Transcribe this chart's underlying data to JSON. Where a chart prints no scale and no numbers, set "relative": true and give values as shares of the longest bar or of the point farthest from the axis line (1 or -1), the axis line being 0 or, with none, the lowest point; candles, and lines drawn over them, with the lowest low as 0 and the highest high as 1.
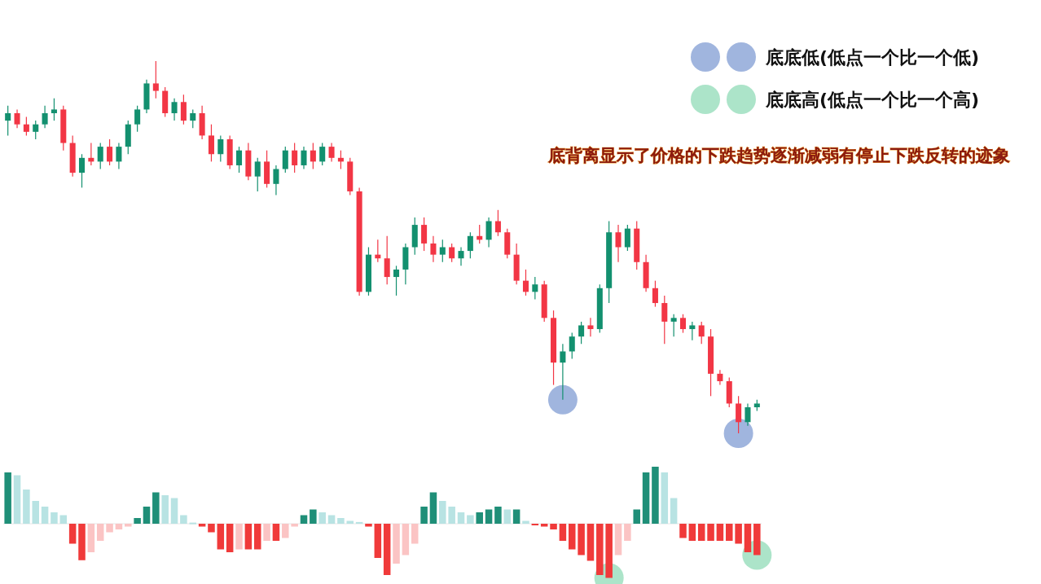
{
  "chart_data": [
    {
      "type": "candlestick",
      "relative": true,
      "categories": [
        null,
        null,
        null,
        null,
        null,
        null,
        null,
        null,
        null,
        null,
        null,
        null,
        null,
        null,
        null,
        null,
        null,
        null,
        null,
        null,
        null,
        null,
        null,
        null,
        null,
        null,
        null,
        null,
        null,
        null,
        null,
        null,
        null,
        null,
        null,
        null,
        null,
        null,
        null,
        null,
        null,
        null,
        null,
        null,
        null,
        null,
        null,
        null,
        null,
        null,
        null,
        null,
        null,
        null,
        null,
        null,
        null,
        null,
        null,
        null,
        null,
        null,
        null,
        null,
        null,
        null,
        null,
        null,
        null,
        null,
        null,
        null,
        null,
        null,
        null,
        null,
        null,
        null,
        null,
        null,
        null,
        null
      ],
      "annotations": [
        "底背离显示了价格的下跌趋势逐渐减弱有停止下跌反转的迹象"
      ],
      "legend": "top right",
      "series": [
        {
          "ohlc": [
            [
              0.84,
              0.88,
              0.8,
              0.86
            ],
            [
              0.86,
              0.87,
              0.82,
              0.83
            ],
            [
              0.83,
              0.85,
              0.8,
              0.81
            ],
            [
              0.81,
              0.84,
              0.79,
              0.83
            ],
            [
              0.83,
              0.88,
              0.82,
              0.86
            ],
            [
              0.86,
              0.9,
              0.84,
              0.87
            ],
            [
              0.87,
              0.88,
              0.76,
              0.78
            ],
            [
              0.78,
              0.8,
              0.69,
              0.7
            ],
            [
              0.7,
              0.75,
              0.66,
              0.74
            ],
            [
              0.74,
              0.78,
              0.72,
              0.73
            ],
            [
              0.73,
              0.78,
              0.71,
              0.77
            ],
            [
              0.77,
              0.79,
              0.72,
              0.73
            ],
            [
              0.73,
              0.78,
              0.71,
              0.77
            ],
            [
              0.77,
              0.84,
              0.75,
              0.83
            ],
            [
              0.83,
              0.88,
              0.81,
              0.87
            ],
            [
              0.87,
              0.95,
              0.86,
              0.94
            ],
            [
              0.94,
              1.0,
              0.9,
              0.92
            ],
            [
              0.92,
              0.93,
              0.85,
              0.86
            ],
            [
              0.86,
              0.9,
              0.84,
              0.89
            ],
            [
              0.89,
              0.91,
              0.83,
              0.84
            ],
            [
              0.84,
              0.87,
              0.82,
              0.86
            ],
            [
              0.86,
              0.88,
              0.79,
              0.8
            ],
            [
              0.8,
              0.83,
              0.73,
              0.75
            ],
            [
              0.75,
              0.8,
              0.73,
              0.79
            ],
            [
              0.79,
              0.8,
              0.71,
              0.72
            ],
            [
              0.72,
              0.77,
              0.7,
              0.76
            ],
            [
              0.76,
              0.78,
              0.68,
              0.69
            ],
            [
              0.69,
              0.74,
              0.65,
              0.73
            ],
            [
              0.73,
              0.76,
              0.66,
              0.67
            ],
            [
              0.67,
              0.72,
              0.64,
              0.71
            ],
            [
              0.71,
              0.77,
              0.7,
              0.76
            ],
            [
              0.76,
              0.78,
              0.7,
              0.72
            ],
            [
              0.72,
              0.77,
              0.71,
              0.76
            ],
            [
              0.76,
              0.78,
              0.71,
              0.73
            ],
            [
              0.73,
              0.78,
              0.72,
              0.77
            ],
            [
              0.77,
              0.78,
              0.73,
              0.74
            ],
            [
              0.74,
              0.76,
              0.71,
              0.73
            ],
            [
              0.73,
              0.74,
              0.64,
              0.65
            ],
            [
              0.65,
              0.66,
              0.37,
              0.38
            ],
            [
              0.38,
              0.5,
              0.37,
              0.48
            ],
            [
              0.48,
              0.52,
              0.46,
              0.47
            ],
            [
              0.47,
              0.53,
              0.4,
              0.42
            ],
            [
              0.42,
              0.45,
              0.37,
              0.44
            ],
            [
              0.44,
              0.51,
              0.4,
              0.5
            ],
            [
              0.5,
              0.58,
              0.48,
              0.56
            ],
            [
              0.56,
              0.58,
              0.49,
              0.51
            ],
            [
              0.51,
              0.53,
              0.46,
              0.48
            ],
            [
              0.48,
              0.52,
              0.46,
              0.5
            ],
            [
              0.5,
              0.51,
              0.46,
              0.47
            ],
            [
              0.47,
              0.5,
              0.45,
              0.49
            ],
            [
              0.49,
              0.54,
              0.47,
              0.53
            ],
            [
              0.53,
              0.56,
              0.51,
              0.52
            ],
            [
              0.52,
              0.58,
              0.5,
              0.57
            ],
            [
              0.57,
              0.6,
              0.53,
              0.54
            ],
            [
              0.54,
              0.55,
              0.47,
              0.48
            ],
            [
              0.48,
              0.51,
              0.4,
              0.41
            ],
            [
              0.41,
              0.44,
              0.37,
              0.38
            ],
            [
              0.38,
              0.42,
              0.36,
              0.4
            ],
            [
              0.4,
              0.41,
              0.3,
              0.31
            ],
            [
              0.31,
              0.33,
              0.13,
              0.19
            ],
            [
              0.19,
              0.24,
              0.09,
              0.22
            ],
            [
              0.22,
              0.27,
              0.2,
              0.26
            ],
            [
              0.26,
              0.3,
              0.24,
              0.29
            ],
            [
              0.29,
              0.31,
              0.26,
              0.28
            ],
            [
              0.28,
              0.4,
              0.27,
              0.39
            ],
            [
              0.39,
              0.57,
              0.35,
              0.54
            ],
            [
              0.54,
              0.56,
              0.46,
              0.5
            ],
            [
              0.5,
              0.56,
              0.49,
              0.55
            ],
            [
              0.55,
              0.57,
              0.44,
              0.46
            ],
            [
              0.46,
              0.48,
              0.38,
              0.39
            ],
            [
              0.39,
              0.41,
              0.34,
              0.35
            ],
            [
              0.35,
              0.37,
              0.24,
              0.3
            ],
            [
              0.3,
              0.32,
              0.26,
              0.31
            ],
            [
              0.31,
              0.32,
              0.27,
              0.28
            ],
            [
              0.28,
              0.3,
              0.25,
              0.29
            ],
            [
              0.29,
              0.3,
              0.24,
              0.26
            ],
            [
              0.26,
              0.28,
              0.1,
              0.16
            ],
            [
              0.16,
              0.17,
              0.13,
              0.14
            ],
            [
              0.14,
              0.15,
              0.07,
              0.08
            ],
            [
              0.08,
              0.1,
              0.0,
              0.03
            ],
            [
              0.03,
              0.08,
              0.02,
              0.07
            ],
            [
              0.07,
              0.09,
              0.06,
              0.08
            ]
          ]
        },
        {
          "type": "scatter",
          "name": "底底低(低点一个比一个低)",
          "color": "#8fa8d8",
          "marker": "circle",
          "values": [
            null,
            null,
            null,
            null,
            null,
            null,
            null,
            null,
            null,
            null,
            null,
            null,
            null,
            null,
            null,
            null,
            null,
            null,
            null,
            null,
            null,
            null,
            null,
            null,
            null,
            null,
            null,
            null,
            null,
            null,
            null,
            null,
            null,
            null,
            null,
            null,
            null,
            null,
            null,
            null,
            null,
            null,
            null,
            null,
            null,
            null,
            null,
            null,
            null,
            null,
            null,
            null,
            null,
            null,
            null,
            null,
            null,
            null,
            null,
            null,
            0.09,
            null,
            null,
            null,
            null,
            null,
            null,
            null,
            null,
            null,
            null,
            null,
            null,
            null,
            null,
            null,
            null,
            null,
            null,
            0.0,
            null,
            null
          ]
        }
      ]
    },
    {
      "type": "bar",
      "relative": true,
      "categories": [
        null,
        null,
        null,
        null,
        null,
        null,
        null,
        null,
        null,
        null,
        null,
        null,
        null,
        null,
        null,
        null,
        null,
        null,
        null,
        null,
        null,
        null,
        null,
        null,
        null,
        null,
        null,
        null,
        null,
        null,
        null,
        null,
        null,
        null,
        null,
        null,
        null,
        null,
        null,
        null,
        null,
        null,
        null,
        null,
        null,
        null,
        null,
        null,
        null,
        null,
        null,
        null,
        null,
        null,
        null,
        null,
        null,
        null,
        null,
        null,
        null,
        null,
        null,
        null,
        null,
        null,
        null,
        null,
        null,
        null,
        null,
        null,
        null,
        null,
        null,
        null,
        null,
        null,
        null,
        null,
        null,
        null
      ],
      "legend": "top right",
      "series": [
        {
          "values": [
            0.9,
            0.85,
            0.6,
            0.4,
            0.3,
            0.2,
            0.15,
            -0.35,
            -0.64,
            -0.5,
            -0.3,
            -0.15,
            -0.1,
            -0.05,
            0.1,
            0.3,
            0.55,
            0.5,
            0.45,
            0.15,
            0.02,
            -0.05,
            -0.15,
            -0.45,
            -0.5,
            -0.45,
            -0.45,
            -0.45,
            -0.3,
            -0.3,
            -0.25,
            -0.05,
            0.15,
            0.25,
            0.2,
            0.15,
            0.1,
            0.05,
            0.03,
            -0.05,
            -0.6,
            -0.9,
            -0.7,
            -0.55,
            -0.35,
            0.3,
            0.55,
            0.4,
            0.3,
            0.2,
            0.15,
            0.2,
            0.25,
            0.3,
            0.25,
            0.25,
            0.05,
            -0.02,
            -0.05,
            -0.1,
            -0.3,
            -0.45,
            -0.55,
            -0.65,
            -0.9,
            -0.95,
            -0.55,
            -0.3,
            0.25,
            0.9,
            1.0,
            0.9,
            0.45,
            -0.25,
            -0.3,
            -0.3,
            -0.3,
            -0.3,
            -0.3,
            -0.35,
            -0.5,
            -0.55
          ],
          "colors": [
            "#1f8f78",
            "#b8e3e3",
            "#b8e3e3",
            "#b8e3e3",
            "#b8e3e3",
            "#b8e3e3",
            "#b8e3e3",
            "#f03a3a",
            "#f03a3a",
            "#fbc4c4",
            "#fbc4c4",
            "#fbc4c4",
            "#fbc4c4",
            "#fbc4c4",
            "#1f8f78",
            "#1f8f78",
            "#1f8f78",
            "#b8e3e3",
            "#b8e3e3",
            "#b8e3e3",
            "#b8e3e3",
            "#f03a3a",
            "#f03a3a",
            "#f03a3a",
            "#f03a3a",
            "#fbc4c4",
            "#f03a3a",
            "#f03a3a",
            "#fbc4c4",
            "#f03a3a",
            "#fbc4c4",
            "#fbc4c4",
            "#1f8f78",
            "#1f8f78",
            "#b8e3e3",
            "#b8e3e3",
            "#b8e3e3",
            "#b8e3e3",
            "#b8e3e3",
            "#f03a3a",
            "#f03a3a",
            "#f03a3a",
            "#fbc4c4",
            "#fbc4c4",
            "#fbc4c4",
            "#1f8f78",
            "#1f8f78",
            "#b8e3e3",
            "#b8e3e3",
            "#b8e3e3",
            "#b8e3e3",
            "#1f8f78",
            "#1f8f78",
            "#1f8f78",
            "#b8e3e3",
            "#1f8f78",
            "#b8e3e3",
            "#f03a3a",
            "#f03a3a",
            "#f03a3a",
            "#f03a3a",
            "#f03a3a",
            "#f03a3a",
            "#f03a3a",
            "#f03a3a",
            "#f03a3a",
            "#fbc4c4",
            "#fbc4c4",
            "#1f8f78",
            "#1f8f78",
            "#1f8f78",
            "#b8e3e3",
            "#b8e3e3",
            "#f03a3a",
            "#f03a3a",
            "#f03a3a",
            "#f03a3a",
            "#f03a3a",
            "#f03a3a",
            "#f03a3a",
            "#f03a3a",
            "#f03a3a"
          ]
        },
        {
          "type": "scatter",
          "name": "底底高(低点一个比一个高)",
          "color": "#9ddfbf",
          "marker": "circle",
          "values": [
            null,
            null,
            null,
            null,
            null,
            null,
            null,
            null,
            null,
            null,
            null,
            null,
            null,
            null,
            null,
            null,
            null,
            null,
            null,
            null,
            null,
            null,
            null,
            null,
            null,
            null,
            null,
            null,
            null,
            null,
            null,
            null,
            null,
            null,
            null,
            null,
            null,
            null,
            null,
            null,
            null,
            null,
            null,
            null,
            null,
            null,
            null,
            null,
            null,
            null,
            null,
            null,
            null,
            null,
            null,
            null,
            null,
            null,
            null,
            null,
            null,
            null,
            null,
            null,
            null,
            -0.95,
            null,
            null,
            null,
            null,
            null,
            null,
            null,
            null,
            null,
            null,
            null,
            null,
            null,
            null,
            null,
            -0.55
          ]
        }
      ]
    }
  ]
}
